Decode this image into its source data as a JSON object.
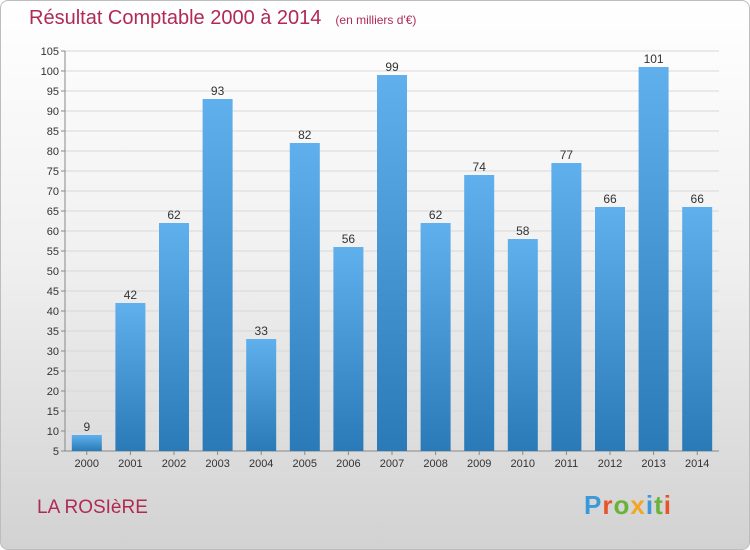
{
  "title": "Résultat Comptable 2000 à 2014",
  "unit": "(en milliers d'€)",
  "place": "LA ROSIèRE",
  "logo": {
    "text": "Proxiti",
    "colors": [
      "#3a9ad9",
      "#e8542a",
      "#6bb23a",
      "#f2a623",
      "#3a9ad9",
      "#6bb23a",
      "#e8542a"
    ]
  },
  "colors": {
    "title": "#b02a54",
    "bar_top": "#5fb0ec",
    "bar_bottom": "#2b7ab8",
    "grid": "#d8d8d8"
  },
  "chart_data": {
    "type": "bar",
    "title": "Résultat Comptable 2000 à 2014",
    "xlabel": "",
    "ylabel": "",
    "categories": [
      "2000",
      "2001",
      "2002",
      "2003",
      "2004",
      "2005",
      "2006",
      "2007",
      "2008",
      "2009",
      "2010",
      "2011",
      "2012",
      "2013",
      "2014"
    ],
    "values": [
      9,
      42,
      62,
      93,
      33,
      82,
      56,
      99,
      62,
      74,
      58,
      77,
      66,
      101,
      66
    ],
    "ylim": [
      5,
      105
    ],
    "yticks": [
      5,
      10,
      15,
      20,
      25,
      30,
      35,
      40,
      45,
      50,
      55,
      60,
      65,
      70,
      75,
      80,
      85,
      90,
      95,
      100,
      105
    ],
    "grid": true,
    "legend": "none"
  }
}
